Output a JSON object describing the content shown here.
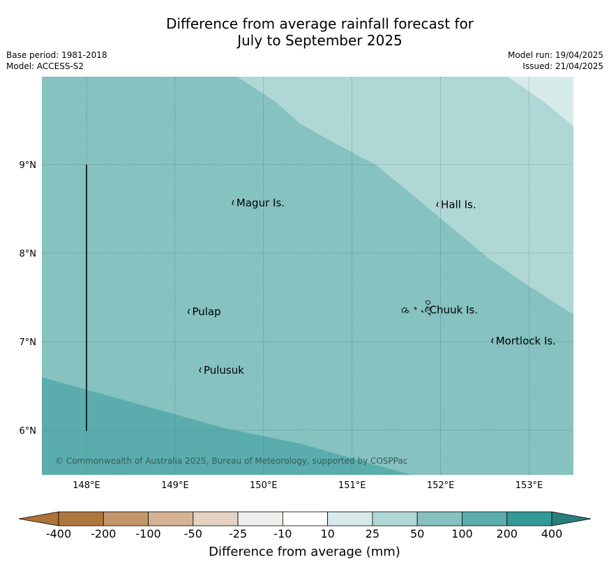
{
  "title_line1": "Difference from average rainfall forecast for",
  "title_line2": "July to September 2025",
  "base_period": "Base period: 1981-2018",
  "model": "Model: ACCESS-S2",
  "model_run": "Model run: 19/04/2025",
  "issued": "Issued: 21/04/2025",
  "copyright": "© Commonwealth of Australia 2025, Bureau of Meteorology, supported by COSPPac",
  "lon_ticks": [
    "148°E",
    "149°E",
    "150°E",
    "151°E",
    "152°E",
    "153°E"
  ],
  "lat_ticks": [
    "9°N",
    "8°N",
    "7°N",
    "6°N"
  ],
  "places": [
    {
      "name": "Magur Is.",
      "lon": 149.67,
      "lat": 8.56
    },
    {
      "name": "Hall Is.",
      "lon": 151.98,
      "lat": 8.54
    },
    {
      "name": "Pulap",
      "lon": 149.17,
      "lat": 7.33
    },
    {
      "name": "Chuuk Is.",
      "lon": 151.85,
      "lat": 7.35
    },
    {
      "name": "Mortlock Is.",
      "lon": 152.6,
      "lat": 7.0
    },
    {
      "name": "Pulusuk",
      "lon": 149.3,
      "lat": 6.67
    }
  ],
  "colorbar": {
    "label": "Difference from average (mm)",
    "ticks": [
      "-400",
      "-200",
      "-100",
      "-50",
      "-25",
      "-10",
      "10",
      "25",
      "50",
      "100",
      "200",
      "400"
    ],
    "colors": [
      "#ac7335",
      "#b0773d",
      "#c4956b",
      "#d4b494",
      "#e4d2c2",
      "#f1efec",
      "#ffffff",
      "#d6ebe9",
      "#afd7d5",
      "#85c2c0",
      "#5badad",
      "#339a97",
      "#2a7f7c"
    ]
  },
  "map_colors": {
    "band_50_100": "#85c2c0",
    "band_25_50": "#afd7d5",
    "band_10_25": "#d6ebe9",
    "band_100_200": "#5badad"
  }
}
